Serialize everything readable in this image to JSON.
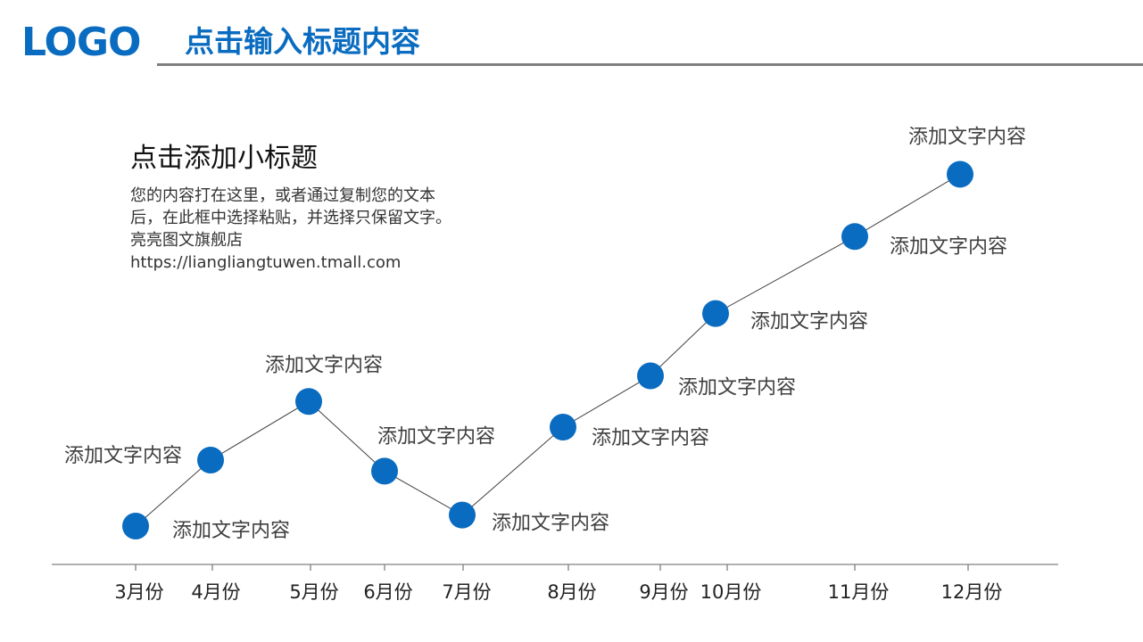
{
  "header": {
    "logo_text": "LOGO",
    "title": "点击输入标题内容"
  },
  "intro": {
    "subtitle": "点击添加小标题",
    "lines": [
      "您的内容打在这里，或者通过复制您的文本",
      "后，在此框中选择粘贴，并选择只保留文字。",
      "亮亮图文旗舰店",
      "https://liangliangtuwen.tmall.com"
    ]
  },
  "colors": {
    "accent": "#0a6cc0",
    "rule": "#7f7f7f",
    "axis": "#808080",
    "line": "#404040"
  },
  "timeline": {
    "months": [
      "3月份",
      "4月份",
      "5月份",
      "6月份",
      "7月份",
      "8月份",
      "9月份",
      "10月份",
      "11月份",
      "12月份"
    ],
    "point_labels": [
      "添加文字内容",
      "添加文字内容",
      "添加文字内容",
      "添加文字内容",
      "添加文字内容",
      "添加文字内容",
      "添加文字内容",
      "添加文字内容",
      "添加文字内容",
      "添加文字内容"
    ],
    "relative_levels": [
      0.0,
      0.18,
      0.34,
      0.15,
      0.03,
      0.27,
      0.41,
      0.58,
      0.79,
      0.96
    ]
  }
}
